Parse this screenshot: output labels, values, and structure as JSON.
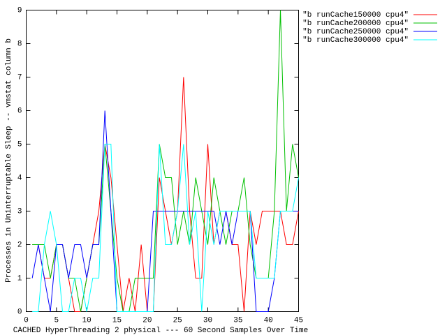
{
  "chart_data": {
    "type": "line",
    "x_label": "CACHED HyperThreading 2 physical --- 60 Second Samples Over Time",
    "y_label": "Processes in Uninterruptable Sleep -- vmstat column b",
    "x": [
      1,
      2,
      3,
      4,
      5,
      6,
      7,
      8,
      9,
      10,
      11,
      12,
      13,
      14,
      15,
      16,
      17,
      18,
      19,
      20,
      21,
      22,
      23,
      24,
      25,
      26,
      27,
      28,
      29,
      30,
      31,
      32,
      33,
      34,
      35,
      36,
      37,
      38,
      39,
      40,
      41,
      42,
      43,
      44,
      45
    ],
    "series": [
      {
        "name": "\"b runCache150000 cpu4\"",
        "color": "#ff0000",
        "values": [
          2,
          2,
          1,
          1,
          2,
          2,
          1,
          0,
          0,
          1,
          2,
          3,
          5,
          4,
          2,
          0,
          1,
          0,
          2,
          0,
          0,
          4,
          3,
          2,
          3,
          7,
          3,
          1,
          1,
          5,
          2,
          3,
          3,
          2,
          2,
          0,
          3,
          2,
          3,
          3,
          3,
          3,
          2,
          2,
          3
        ]
      },
      {
        "name": "\"b runCache200000 cpu4\"",
        "color": "#00c000",
        "values": [
          2,
          2,
          2,
          1,
          2,
          2,
          1,
          1,
          0,
          1,
          2,
          2,
          5,
          3,
          1,
          0,
          0,
          1,
          1,
          1,
          1,
          5,
          4,
          4,
          2,
          3,
          2,
          4,
          3,
          2,
          4,
          3,
          2,
          3,
          3,
          4,
          2,
          1,
          1,
          1,
          3,
          9,
          3,
          5,
          4
        ]
      },
      {
        "name": "\"b runCache250000 cpu4\"",
        "color": "#0000ff",
        "values": [
          1,
          2,
          1,
          0,
          2,
          2,
          1,
          2,
          2,
          1,
          2,
          2,
          6,
          3,
          0,
          0,
          0,
          0,
          0,
          0,
          3,
          3,
          3,
          3,
          3,
          3,
          3,
          3,
          3,
          3,
          3,
          2,
          3,
          2,
          3,
          3,
          3,
          0,
          0,
          0,
          1,
          3,
          3,
          3,
          3
        ]
      },
      {
        "name": "\"b runCache300000 cpu4\"",
        "color": "#00ffff",
        "values": [
          0,
          0,
          2,
          3,
          2,
          0,
          0,
          1,
          1,
          0,
          1,
          1,
          5,
          5,
          0,
          0,
          0,
          0,
          0,
          0,
          0,
          5,
          2,
          2,
          3,
          5,
          2,
          3,
          0,
          3,
          2,
          3,
          3,
          3,
          3,
          3,
          3,
          1,
          1,
          1,
          1,
          3,
          3,
          3,
          4
        ]
      }
    ],
    "xlim": [
      0,
      45
    ],
    "xticks": [
      0,
      5,
      10,
      15,
      20,
      25,
      30,
      35,
      40,
      45
    ],
    "ylim": [
      0,
      9
    ],
    "yticks": [
      0,
      1,
      2,
      3,
      4,
      5,
      6,
      7,
      8,
      9
    ]
  }
}
